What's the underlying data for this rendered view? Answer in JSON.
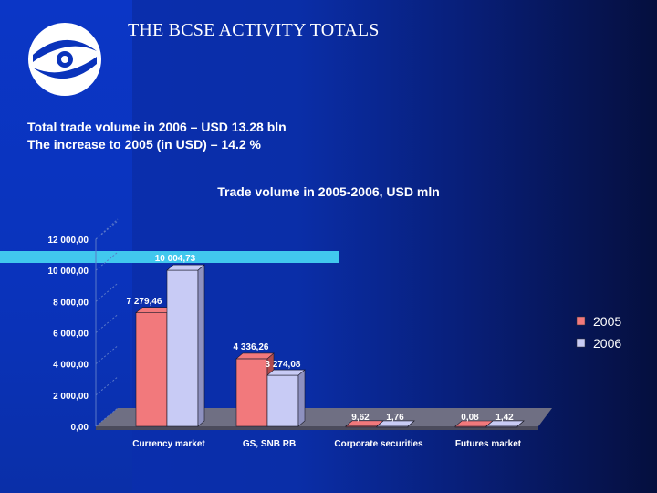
{
  "title": "THE BCSE ACTIVITY TOTALS",
  "subtitle_lines": [
    "Total trade volume in 2006 – USD 13.28 bln",
    "The increase to 2005 (in USD) – 14.2 %"
  ],
  "colors": {
    "series_2005": "#f2797c",
    "series_2006": "#c8cbf5",
    "accent_cyan": "#41c8ee",
    "background": "#0a2ea8"
  },
  "chart_data": {
    "type": "bar",
    "title": "Trade volume in 2005-2006, USD mln",
    "xlabel": "",
    "ylabel": "",
    "ylim": [
      0,
      12000
    ],
    "yticks": [
      "0,00",
      "2 000,00",
      "4 000,00",
      "6 000,00",
      "8 000,00",
      "10 000,00",
      "12 000,00"
    ],
    "categories": [
      "Currency market",
      "GS, SNB RB",
      "Corporate securities",
      "Futures market"
    ],
    "series": [
      {
        "name": "2005",
        "values": [
          7279.46,
          4336.26,
          9.62,
          0.08
        ],
        "labels": [
          "7 279,46",
          "4 336,26",
          "9,62",
          "0,08"
        ]
      },
      {
        "name": "2006",
        "values": [
          10004.73,
          3274.08,
          1.76,
          1.42
        ],
        "labels": [
          "10 004,73",
          "3 274,08",
          "1,76",
          "1,42"
        ]
      }
    ],
    "legend_position": "right",
    "grid": false,
    "style": "3d-bar"
  }
}
